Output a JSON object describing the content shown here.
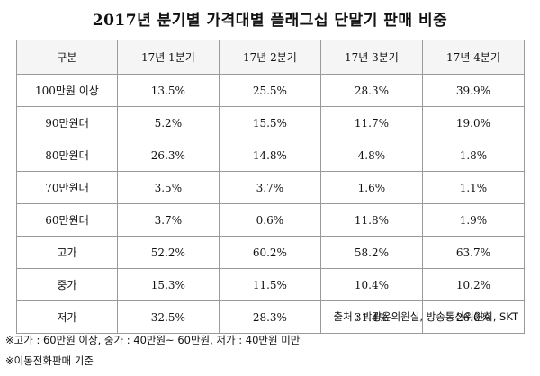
{
  "title": "2017년 분기별 가격대별 플래그십 단말기 판매 비중",
  "table": {
    "corner": "구분",
    "quarters": [
      "17년 1분기",
      "17년 2분기",
      "17년 3분기",
      "17년 4분기"
    ],
    "rows": [
      {
        "label": "100만원 이상",
        "values": [
          "13.5%",
          "25.5%",
          "28.3%",
          "39.9%"
        ]
      },
      {
        "label": "90만원대",
        "values": [
          "5.2%",
          "15.5%",
          "11.7%",
          "19.0%"
        ]
      },
      {
        "label": "80만원대",
        "values": [
          "26.3%",
          "14.8%",
          "4.8%",
          "1.8%"
        ]
      },
      {
        "label": "70만원대",
        "values": [
          "3.5%",
          "3.7%",
          "1.6%",
          "1.1%"
        ]
      },
      {
        "label": "60만원대",
        "values": [
          "3.7%",
          "0.6%",
          "11.8%",
          "1.9%"
        ]
      },
      {
        "label": "고가",
        "values": [
          "52.2%",
          "60.2%",
          "58.2%",
          "63.7%"
        ]
      },
      {
        "label": "중가",
        "values": [
          "15.3%",
          "11.5%",
          "10.4%",
          "10.2%"
        ]
      },
      {
        "label": "저가",
        "values": [
          "32.5%",
          "28.3%",
          "31.4%",
          "26.0%"
        ]
      }
    ]
  },
  "source": "출처 : 박광온의원실, 방송통신위원회, SKT",
  "notes": [
    "※고가 : 60만원 이상, 중가 : 40만원~ 60만원, 저가 : 40만원 미만",
    "※이동전화판매 기준"
  ]
}
